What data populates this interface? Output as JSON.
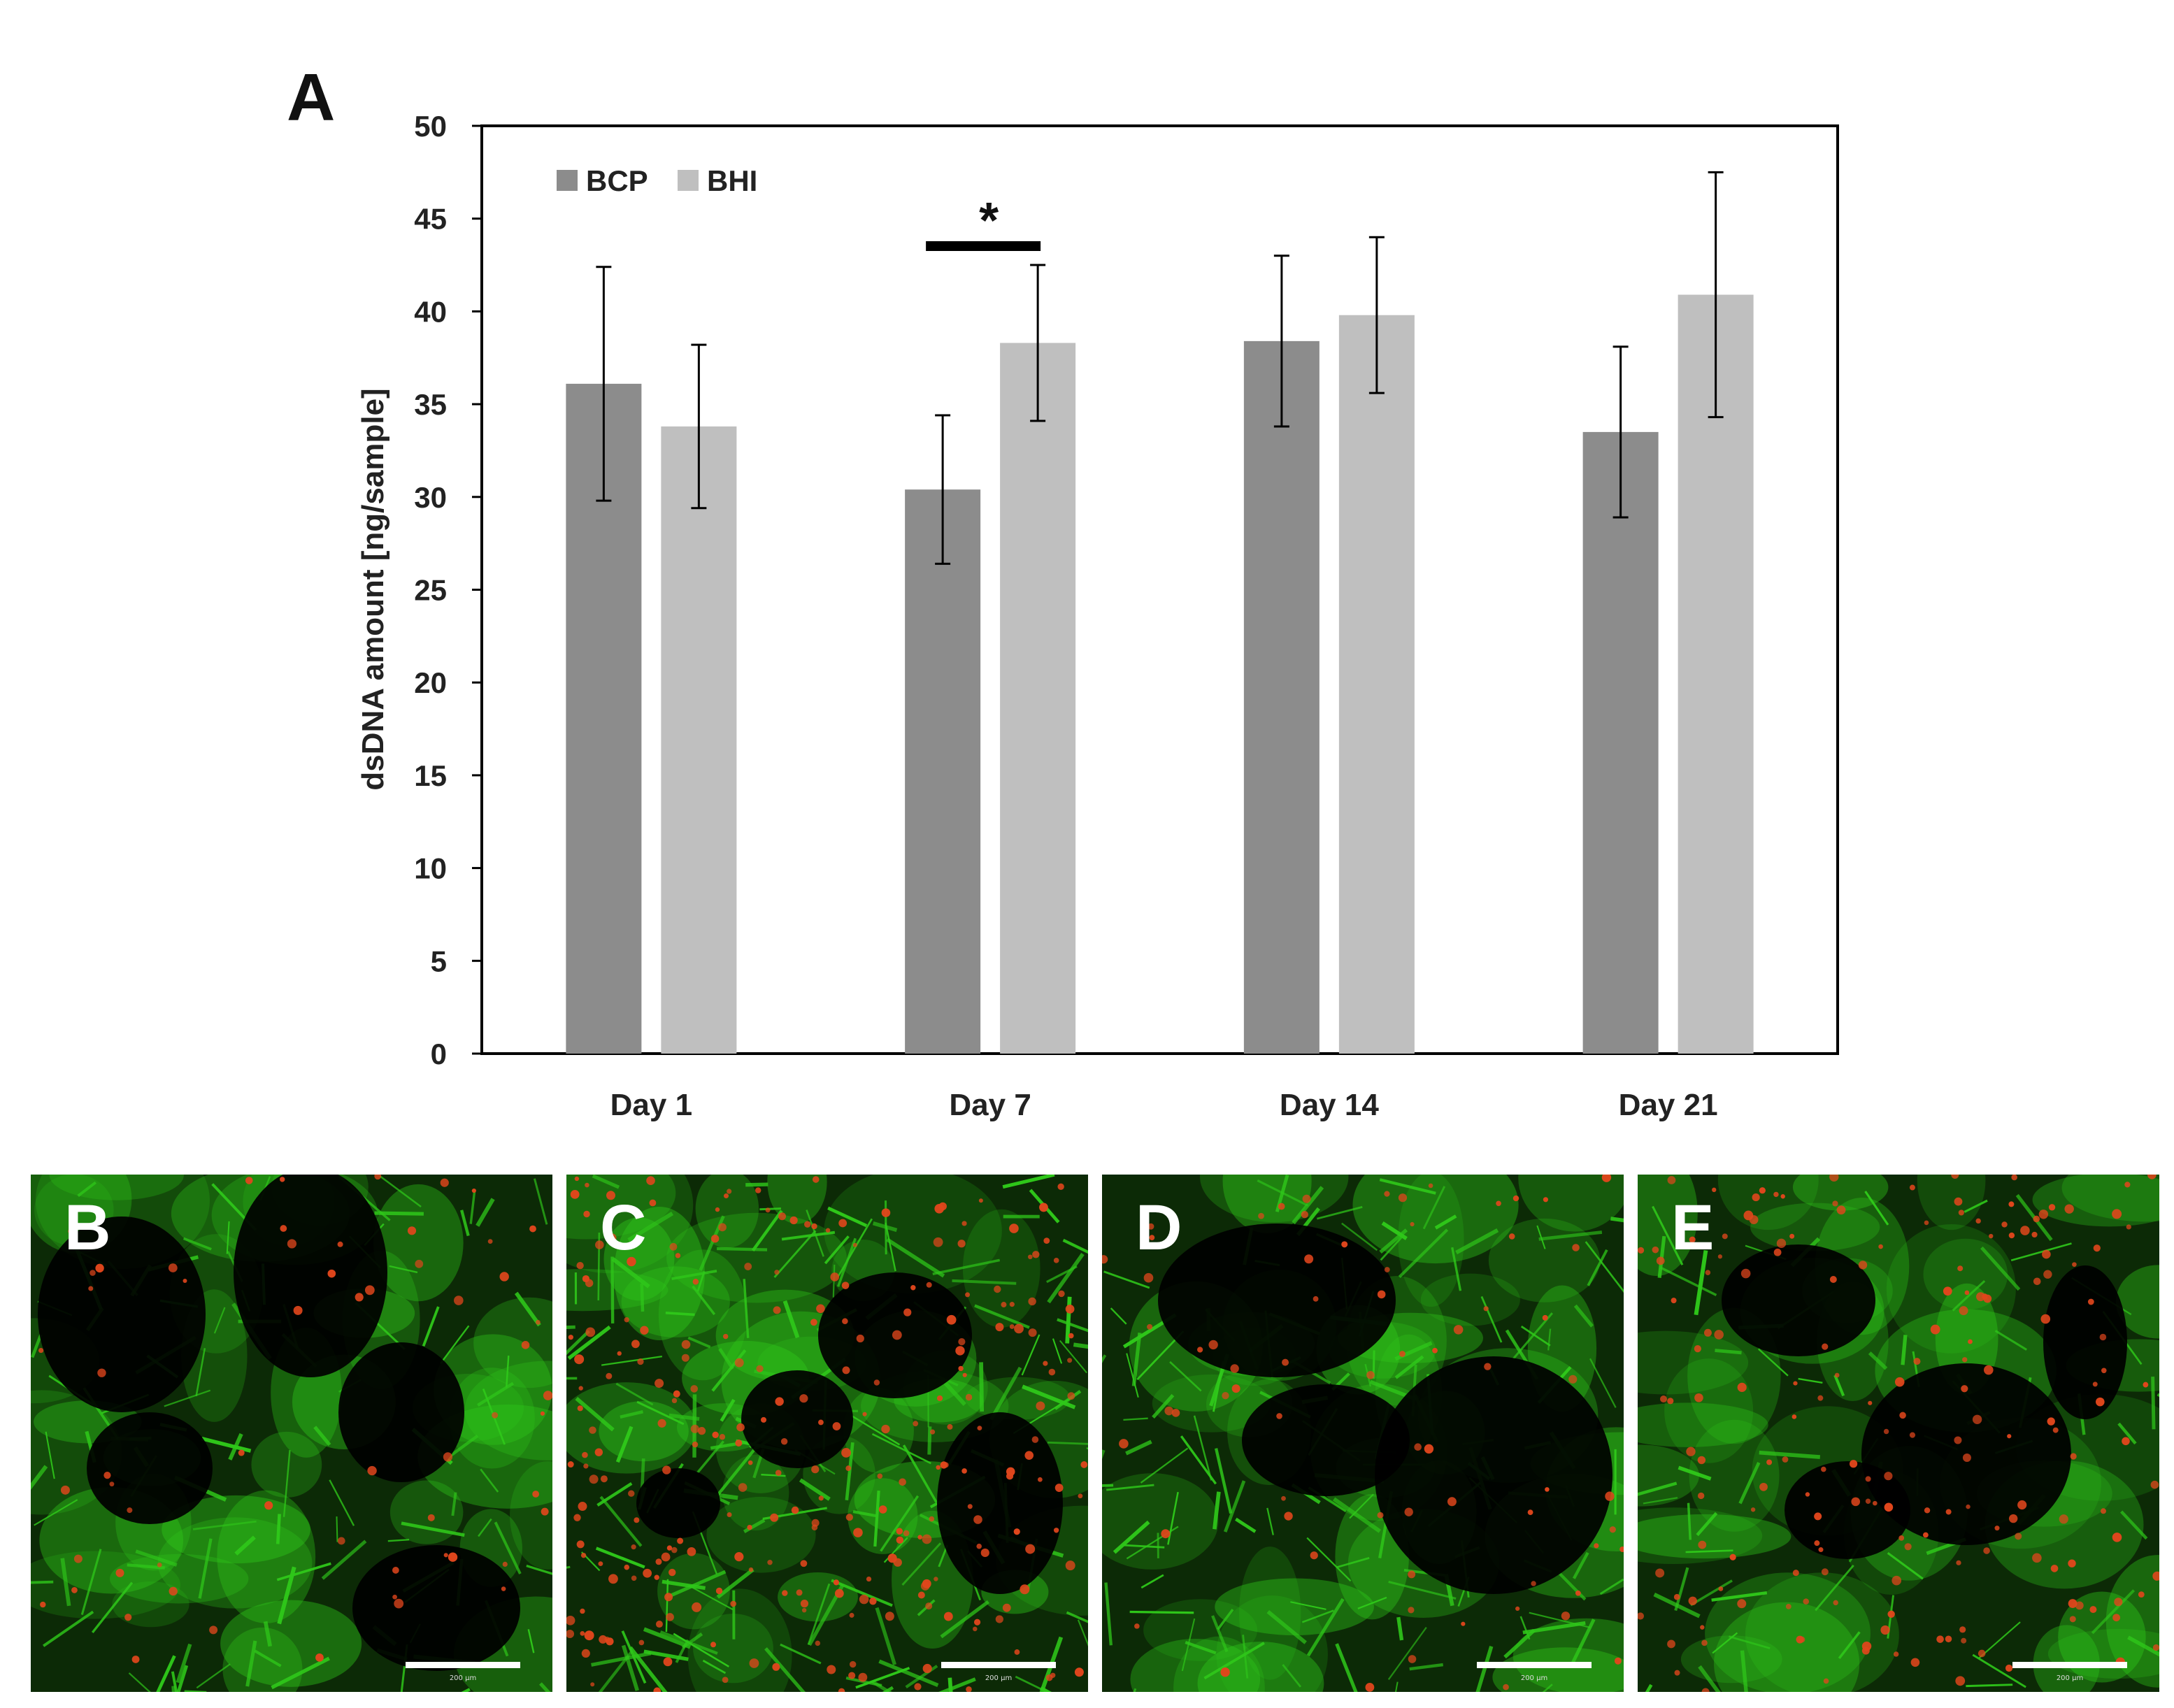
{
  "figure": {
    "panel_label_a": "A"
  },
  "chart_data": {
    "type": "bar",
    "categories": [
      "Day 1",
      "Day 7",
      "Day 14",
      "Day 21"
    ],
    "series": [
      {
        "name": "BCP",
        "values": [
          36.1,
          30.4,
          38.4,
          33.5
        ],
        "errors": [
          6.3,
          4.0,
          4.6,
          4.6
        ],
        "color": "#8c8c8c"
      },
      {
        "name": "BHI",
        "values": [
          33.8,
          38.3,
          39.8,
          40.9
        ],
        "errors": [
          4.4,
          4.2,
          4.2,
          6.6
        ],
        "color": "#bfbfbf"
      }
    ],
    "ylabel": "dsDNA amount [ng/sample]",
    "xlabel": "",
    "ylim": [
      0,
      50
    ],
    "yticks": [
      0,
      5,
      10,
      15,
      20,
      25,
      30,
      35,
      40,
      45,
      50
    ],
    "grid": false,
    "legend_position": "top-left",
    "annotations": [
      {
        "text": "*",
        "category": "Day 7",
        "meaning": "significance bracket between BCP and BHI"
      }
    ]
  },
  "images": [
    {
      "label": "B",
      "scale_label": "200 µm"
    },
    {
      "label": "C",
      "scale_label": "200 µm"
    },
    {
      "label": "D",
      "scale_label": "200 µm"
    },
    {
      "label": "E",
      "scale_label": "200 µm"
    }
  ],
  "colors": {
    "stain_green": "#2fc81a",
    "stain_red": "#e0461c",
    "background_black": "#000000"
  }
}
